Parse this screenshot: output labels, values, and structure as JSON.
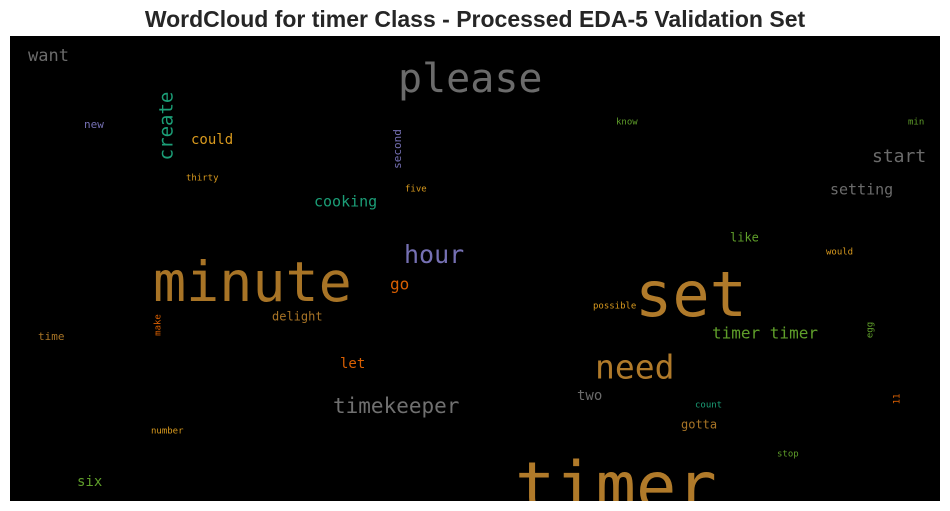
{
  "chart_data": {
    "type": "wordcloud",
    "title": "WordCloud for timer Class - Processed EDA-5 Validation Set",
    "background": "#000000",
    "words": [
      {
        "text": "timer",
        "color": "#b07a2a",
        "orientation": "horizontal"
      },
      {
        "text": "set",
        "color": "#b07a2a",
        "orientation": "horizontal"
      },
      {
        "text": "minute",
        "color": "#a87426",
        "orientation": "horizontal"
      },
      {
        "text": "please",
        "color": "#6b6b6b",
        "orientation": "horizontal"
      },
      {
        "text": "need",
        "color": "#b07a2a",
        "orientation": "horizontal"
      },
      {
        "text": "hour",
        "color": "#7570b3",
        "orientation": "horizontal"
      },
      {
        "text": "timekeeper",
        "color": "#707070",
        "orientation": "horizontal"
      },
      {
        "text": "create",
        "color": "#1b9e77",
        "orientation": "vertical"
      },
      {
        "text": "timer timer",
        "color": "#5f9e2a",
        "orientation": "horizontal"
      },
      {
        "text": "start",
        "color": "#6b6b6b",
        "orientation": "horizontal"
      },
      {
        "text": "want",
        "color": "#6b6b6b",
        "orientation": "horizontal"
      },
      {
        "text": "cooking",
        "color": "#1b9e77",
        "orientation": "horizontal"
      },
      {
        "text": "setting",
        "color": "#6b6b6b",
        "orientation": "horizontal"
      },
      {
        "text": "could",
        "color": "#d99a1e",
        "orientation": "horizontal"
      },
      {
        "text": "go",
        "color": "#d95f02",
        "orientation": "horizontal"
      },
      {
        "text": "two",
        "color": "#6b6b6b",
        "orientation": "horizontal"
      },
      {
        "text": "let",
        "color": "#d95f02",
        "orientation": "horizontal"
      },
      {
        "text": "six",
        "color": "#5f9e2a",
        "orientation": "horizontal"
      },
      {
        "text": "gotta",
        "color": "#a87426",
        "orientation": "horizontal"
      },
      {
        "text": "like",
        "color": "#5f9e2a",
        "orientation": "horizontal"
      },
      {
        "text": "delight",
        "color": "#a87426",
        "orientation": "horizontal"
      },
      {
        "text": "second",
        "color": "#7570b3",
        "orientation": "vertical"
      },
      {
        "text": "time",
        "color": "#a87426",
        "orientation": "horizontal"
      },
      {
        "text": "new",
        "color": "#7570b3",
        "orientation": "horizontal"
      },
      {
        "text": "thirty",
        "color": "#d99a1e",
        "orientation": "horizontal"
      },
      {
        "text": "five",
        "color": "#d99a1e",
        "orientation": "horizontal"
      },
      {
        "text": "possible",
        "color": "#d99a1e",
        "orientation": "horizontal"
      },
      {
        "text": "would",
        "color": "#d99a1e",
        "orientation": "horizontal"
      },
      {
        "text": "number",
        "color": "#d99a1e",
        "orientation": "horizontal"
      },
      {
        "text": "count",
        "color": "#1b9e77",
        "orientation": "horizontal"
      },
      {
        "text": "stop",
        "color": "#5f9e2a",
        "orientation": "horizontal"
      },
      {
        "text": "know",
        "color": "#5f9e2a",
        "orientation": "horizontal"
      },
      {
        "text": "min",
        "color": "#5f9e2a",
        "orientation": "horizontal"
      },
      {
        "text": "make",
        "color": "#d95f02",
        "orientation": "vertical"
      },
      {
        "text": "egg",
        "color": "#5f9e2a",
        "orientation": "vertical"
      },
      {
        "text": "11",
        "color": "#d95f02",
        "orientation": "vertical"
      }
    ]
  }
}
